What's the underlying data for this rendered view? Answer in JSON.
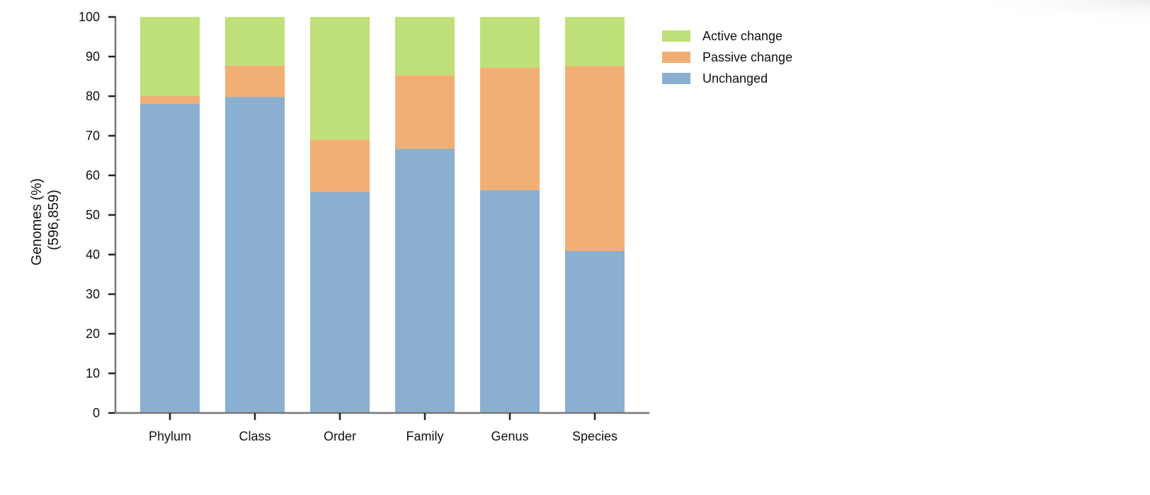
{
  "chart_data": {
    "type": "bar",
    "stacked": true,
    "categories": [
      "Phylum",
      "Class",
      "Order",
      "Family",
      "Genus",
      "Species"
    ],
    "series": [
      {
        "name": "Unchanged",
        "values": [
          78.1,
          79.8,
          55.8,
          66.7,
          56.3,
          40.9
        ],
        "color": "#8aafd1"
      },
      {
        "name": "Passive change",
        "values": [
          1.9,
          7.9,
          13.2,
          18.6,
          30.9,
          46.7
        ],
        "color": "#f1af75"
      },
      {
        "name": "Active change",
        "values": [
          20.0,
          12.3,
          31.0,
          14.7,
          12.8,
          12.4
        ],
        "color": "#bfdf78"
      }
    ],
    "legend_order": [
      "Active change",
      "Passive change",
      "Unchanged"
    ],
    "ylabel_line1": "Genomes (%)",
    "ylabel_line2": "(596,859)",
    "xlabel": "",
    "ylim": [
      0,
      100
    ],
    "yticks": [
      0,
      10,
      20,
      30,
      40,
      50,
      60,
      70,
      80,
      90,
      100
    ],
    "grid": false,
    "legend_position": "right"
  }
}
